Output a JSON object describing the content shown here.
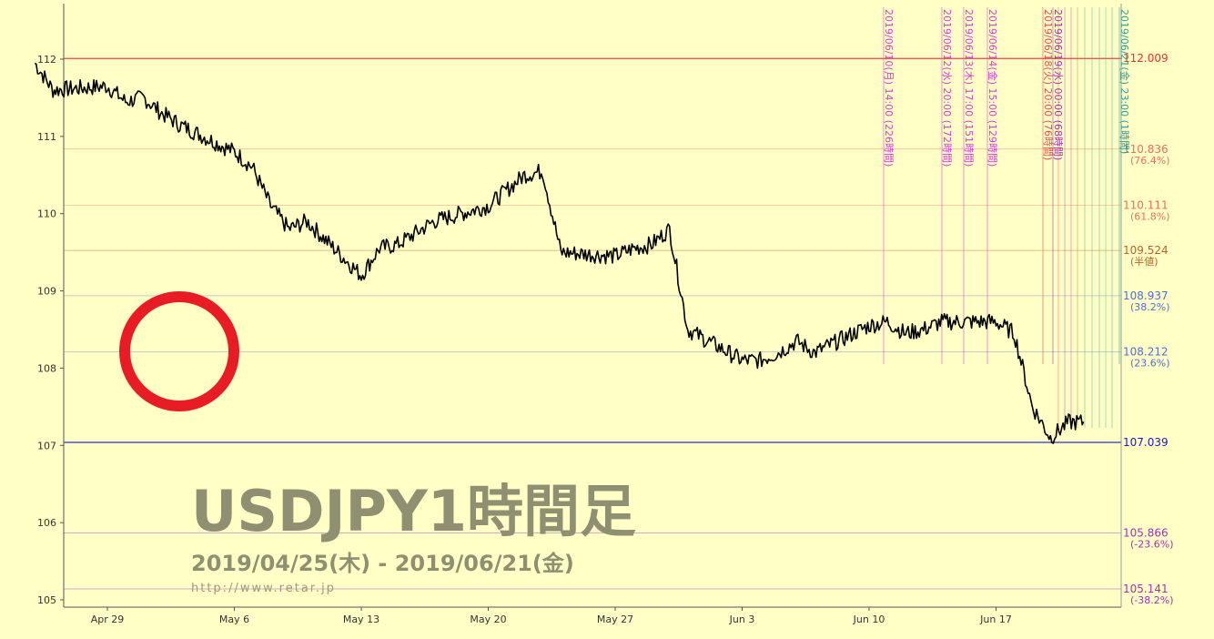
{
  "chart_data": {
    "type": "line",
    "title": "USDJPY1時間足",
    "subtitle": "2019/04/25(木) - 2019/06/21(金)",
    "source": "http://www.retar.jp",
    "ylim": [
      105,
      112.1
    ],
    "y_ticks": [
      "105",
      "106",
      "107",
      "108",
      "109",
      "110",
      "111",
      "112"
    ],
    "x_ticks": [
      "Apr 29",
      "May 6",
      "May 13",
      "May 20",
      "May 27",
      "Jun 3",
      "Jun 10",
      "Jun 17"
    ],
    "grid": true,
    "series": [
      {
        "x": [
          "2019-04-25",
          "2019-04-26",
          "2019-04-29",
          "2019-04-30",
          "2019-05-01",
          "2019-05-02",
          "2019-05-03",
          "2019-05-06",
          "2019-05-07",
          "2019-05-08",
          "2019-05-09",
          "2019-05-10",
          "2019-05-13",
          "2019-05-14",
          "2019-05-15",
          "2019-05-16",
          "2019-05-17",
          "2019-05-20",
          "2019-05-21",
          "2019-05-22",
          "2019-05-23",
          "2019-05-24",
          "2019-05-27",
          "2019-05-28",
          "2019-05-29",
          "2019-05-30",
          "2019-05-31",
          "2019-06-03",
          "2019-06-04",
          "2019-06-05",
          "2019-06-06",
          "2019-06-07",
          "2019-06-10",
          "2019-06-11",
          "2019-06-12",
          "2019-06-13",
          "2019-06-14",
          "2019-06-17",
          "2019-06-18",
          "2019-06-19",
          "2019-06-20",
          "2019-06-21"
        ],
        "values": [
          111.95,
          111.6,
          111.65,
          111.45,
          111.5,
          111.3,
          111.15,
          110.8,
          110.6,
          110.1,
          109.8,
          109.9,
          109.2,
          109.55,
          109.6,
          109.75,
          109.9,
          110.1,
          110.3,
          110.5,
          110.55,
          109.5,
          109.45,
          109.55,
          109.6,
          109.8,
          108.5,
          108.1,
          108.1,
          108.2,
          108.35,
          108.2,
          108.55,
          108.6,
          108.45,
          108.5,
          108.6,
          108.6,
          108.45,
          107.5,
          107.1,
          107.3
        ]
      }
    ],
    "horizontal_levels": [
      {
        "value": 112.009,
        "label": "112.009",
        "sub": "",
        "color": "#e83030"
      },
      {
        "value": 110.836,
        "label": "110.836",
        "sub": "(76.4%)",
        "color": "#e87060"
      },
      {
        "value": 110.111,
        "label": "110.111",
        "sub": "(61.8%)",
        "color": "#e87060"
      },
      {
        "value": 109.524,
        "label": "109.524",
        "sub": "(半値)",
        "color": "#c0602a"
      },
      {
        "value": 108.937,
        "label": "108.937",
        "sub": "(38.2%)",
        "color": "#4e6ee0"
      },
      {
        "value": 108.212,
        "label": "108.212",
        "sub": "(23.6%)",
        "color": "#4e6ee0"
      },
      {
        "value": 107.039,
        "label": "107.039",
        "sub": "",
        "color": "#1a1ad0"
      },
      {
        "value": 105.866,
        "label": "105.866",
        "sub": "(-23.6%)",
        "color": "#a030c0"
      },
      {
        "value": 105.141,
        "label": "105.141",
        "sub": "(-38.2%)",
        "color": "#a030c0"
      }
    ],
    "time_markers": [
      {
        "date": "2019-06-10",
        "label": "2019/06/10(月) 14:00 (226時間)",
        "color": "#d040d8"
      },
      {
        "date": "2019-06-12",
        "label": "2019/06/12(水) 20:00 (172時間)",
        "color": "#d040d8"
      },
      {
        "date": "2019-06-13",
        "label": "2019/06/13(木) 17:00 (151時間)",
        "color": "#d040d8"
      },
      {
        "date": "2019-06-14",
        "label": "2019/06/14(金) 15:00 (129時間)",
        "color": "#d040d8"
      },
      {
        "date": "2019-06-18",
        "label": "2019/06/18(火) 20:00 (76時間)",
        "color": "#e05050"
      },
      {
        "date": "2019-06-19",
        "label": "2019/06/19(水) 00:00 (68時間)",
        "color": "#a030c0"
      },
      {
        "date": "2019-06-21",
        "label": "2019/06/21(金) 23:00 (1時間)",
        "color": "#20a0a0"
      }
    ],
    "annotation_colors": {
      "circle": "#e81c24",
      "line": "#000000"
    }
  }
}
